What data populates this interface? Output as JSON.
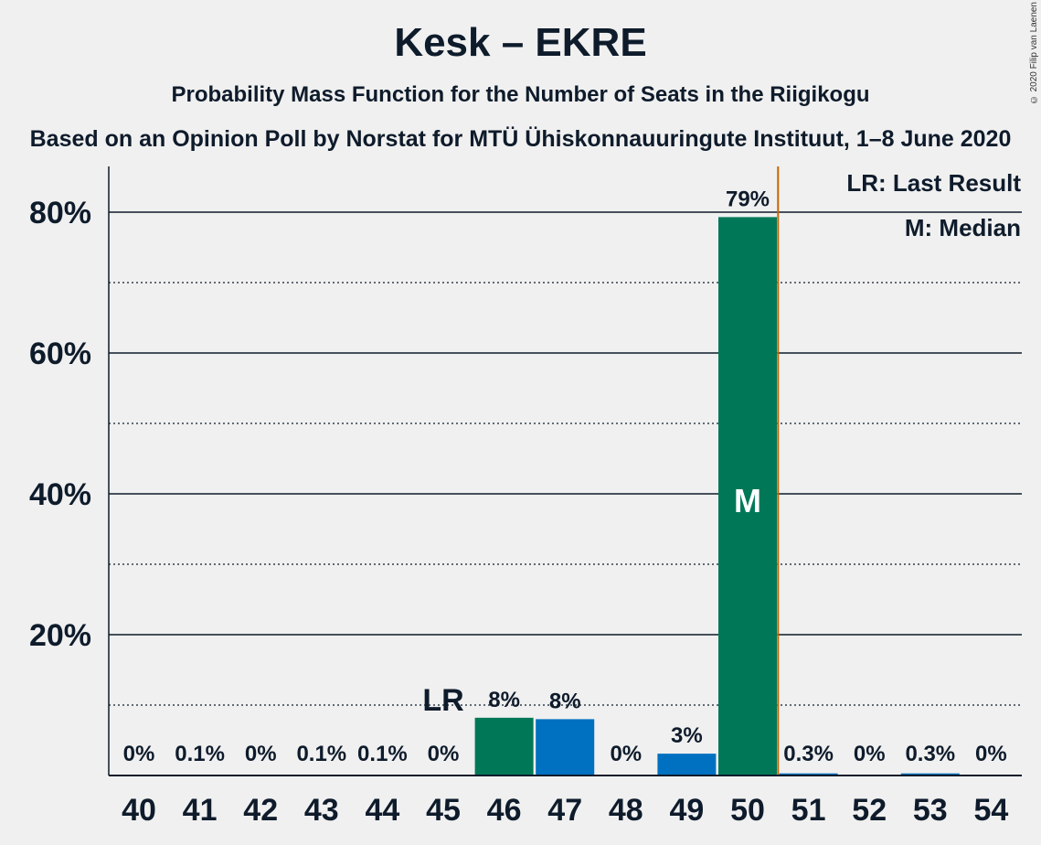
{
  "title": "Kesk – EKRE",
  "subtitle": "Probability Mass Function for the Number of Seats in the Riigikogu",
  "source": "Based on an Opinion Poll by Norstat for MTÜ Ühiskonnauuringute Instituut, 1–8 June 2020",
  "copyright": "© 2020 Filip van Laenen",
  "legend": {
    "last_result": "LR: Last Result",
    "median": "M: Median"
  },
  "markers": {
    "last_result_label": "LR",
    "median_label": "M"
  },
  "colors": {
    "green": "#007858",
    "blue": "#0070c0",
    "majority_line": "#c86400",
    "text": "#0e1b2b"
  },
  "chart_data": {
    "type": "bar",
    "categories": [
      "40",
      "41",
      "42",
      "43",
      "44",
      "45",
      "46",
      "47",
      "48",
      "49",
      "50",
      "51",
      "52",
      "53",
      "54"
    ],
    "values": [
      0,
      0.1,
      0,
      0.1,
      0.1,
      0,
      8.2,
      8.0,
      0,
      3.1,
      79.3,
      0.3,
      0,
      0.3,
      0
    ],
    "labels": [
      "0%",
      "0.1%",
      "0%",
      "0.1%",
      "0.1%",
      "0%",
      "8%",
      "8%",
      "0%",
      "3%",
      "79%",
      "0.3%",
      "0%",
      "0.3%",
      "0%"
    ],
    "bar_colors": [
      "green",
      "green",
      "green",
      "green",
      "green",
      "green",
      "green",
      "blue",
      "green",
      "blue",
      "green",
      "blue",
      "green",
      "blue",
      "green"
    ],
    "ylim": [
      0,
      86
    ],
    "y_ticks": [
      {
        "value": 20,
        "label": "20%"
      },
      {
        "value": 40,
        "label": "40%"
      },
      {
        "value": 60,
        "label": "60%"
      },
      {
        "value": 80,
        "label": "80%"
      }
    ],
    "y_minor_ticks": [
      10,
      30,
      50,
      70
    ],
    "last_result": "45",
    "median": "50",
    "majority_after": "50"
  }
}
